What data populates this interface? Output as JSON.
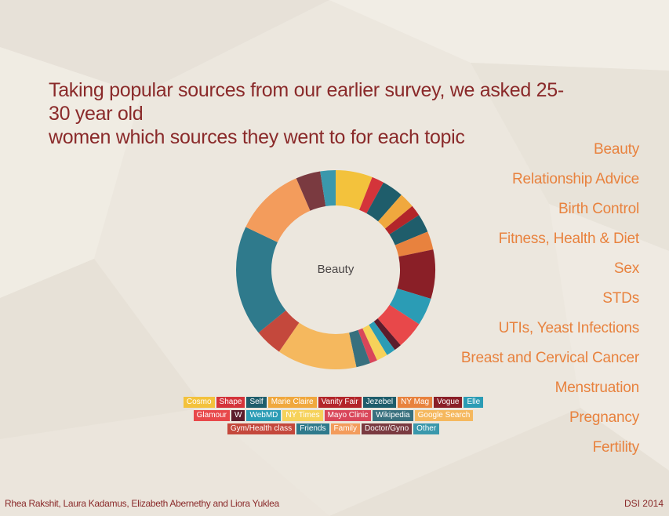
{
  "headline": {
    "line1": "Taking popular sources from our earlier survey, we asked 25-30 year old",
    "line2": "women which sources they went to for each topic"
  },
  "topics": [
    "Beauty",
    "Relationship Advice",
    "Birth Control",
    "Fitness, Health & Diet",
    "Sex",
    "STDs",
    "UTIs, Yeast Infections",
    "Breast and Cervical Cancer",
    "Menstruation",
    "Pregnancy",
    "Fertility"
  ],
  "footer": {
    "authors": "Rhea Rakshit, Laura Kadamus, Elizabeth Abernethy and Liora Yuklea",
    "event": "DSI 2014"
  },
  "colors": {
    "headline": "#8a2a2a",
    "topic": "#e8823e",
    "background": "#ece7de"
  },
  "chart_data": {
    "type": "pie",
    "center_label": "Beauty",
    "legend": [
      [
        {
          "name": "Cosmo",
          "color": "#f3c23c"
        },
        {
          "name": "Shape",
          "color": "#d4343a"
        },
        {
          "name": "Self",
          "color": "#1f5d6b"
        },
        {
          "name": "Marie Claire",
          "color": "#f0a83e"
        },
        {
          "name": "Vanity Fair",
          "color": "#b3262a"
        },
        {
          "name": "Jezebel",
          "color": "#1f5d6b"
        },
        {
          "name": "NY Mag",
          "color": "#e8823e"
        },
        {
          "name": "Vogue",
          "color": "#8a1f27"
        },
        {
          "name": "Elle",
          "color": "#2b9cb5"
        }
      ],
      [
        {
          "name": "Glamour",
          "color": "#e8484a"
        },
        {
          "name": "W",
          "color": "#5c1c2c"
        },
        {
          "name": "WebMD",
          "color": "#2b9cb5"
        },
        {
          "name": "NY Times",
          "color": "#f6d25a"
        },
        {
          "name": "Mayo Clinic",
          "color": "#d9465a"
        },
        {
          "name": "Wikipedia",
          "color": "#38707e"
        },
        {
          "name": "Google Search",
          "color": "#f5b85e"
        }
      ],
      [
        {
          "name": "Gym/Health class",
          "color": "#c4483c"
        },
        {
          "name": "Friends",
          "color": "#2f7a8c"
        },
        {
          "name": "Family",
          "color": "#f39c5c"
        },
        {
          "name": "Doctor/Gyno",
          "color": "#7a3a40"
        },
        {
          "name": "Other",
          "color": "#3a98ac"
        }
      ]
    ],
    "slices": [
      {
        "source": "Cosmo",
        "value": 6.0,
        "color": "#f3c23c"
      },
      {
        "source": "Shape",
        "value": 2.0,
        "color": "#d4343a"
      },
      {
        "source": "Self",
        "value": 3.5,
        "color": "#1f5d6b"
      },
      {
        "source": "Marie Claire",
        "value": 2.5,
        "color": "#f0a83e"
      },
      {
        "source": "Vanity Fair",
        "value": 1.8,
        "color": "#b3262a"
      },
      {
        "source": "Jezebel",
        "value": 3.0,
        "color": "#1f5d6b"
      },
      {
        "source": "NY Mag",
        "value": 3.0,
        "color": "#e8823e"
      },
      {
        "source": "Vogue",
        "value": 8.0,
        "color": "#8a1f27"
      },
      {
        "source": "Elle",
        "value": 4.5,
        "color": "#2b9cb5"
      },
      {
        "source": "Glamour",
        "value": 4.5,
        "color": "#e8484a"
      },
      {
        "source": "W",
        "value": 1.2,
        "color": "#5c1c2c"
      },
      {
        "source": "WebMD",
        "value": 1.5,
        "color": "#2b9cb5"
      },
      {
        "source": "NY Times",
        "value": 1.8,
        "color": "#f6d25a"
      },
      {
        "source": "Mayo Clinic",
        "value": 1.2,
        "color": "#d9465a"
      },
      {
        "source": "Wikipedia",
        "value": 2.3,
        "color": "#38707e"
      },
      {
        "source": "Google Search",
        "value": 13.0,
        "color": "#f5b85e"
      },
      {
        "source": "Gym/Health class",
        "value": 4.5,
        "color": "#c4483c"
      },
      {
        "source": "Friends",
        "value": 18.0,
        "color": "#2f7a8c"
      },
      {
        "source": "Family",
        "value": 11.5,
        "color": "#f39c5c"
      },
      {
        "source": "Doctor/Gyno",
        "value": 4.0,
        "color": "#7a3a40"
      },
      {
        "source": "Other",
        "value": 2.5,
        "color": "#3a98ac"
      }
    ]
  }
}
